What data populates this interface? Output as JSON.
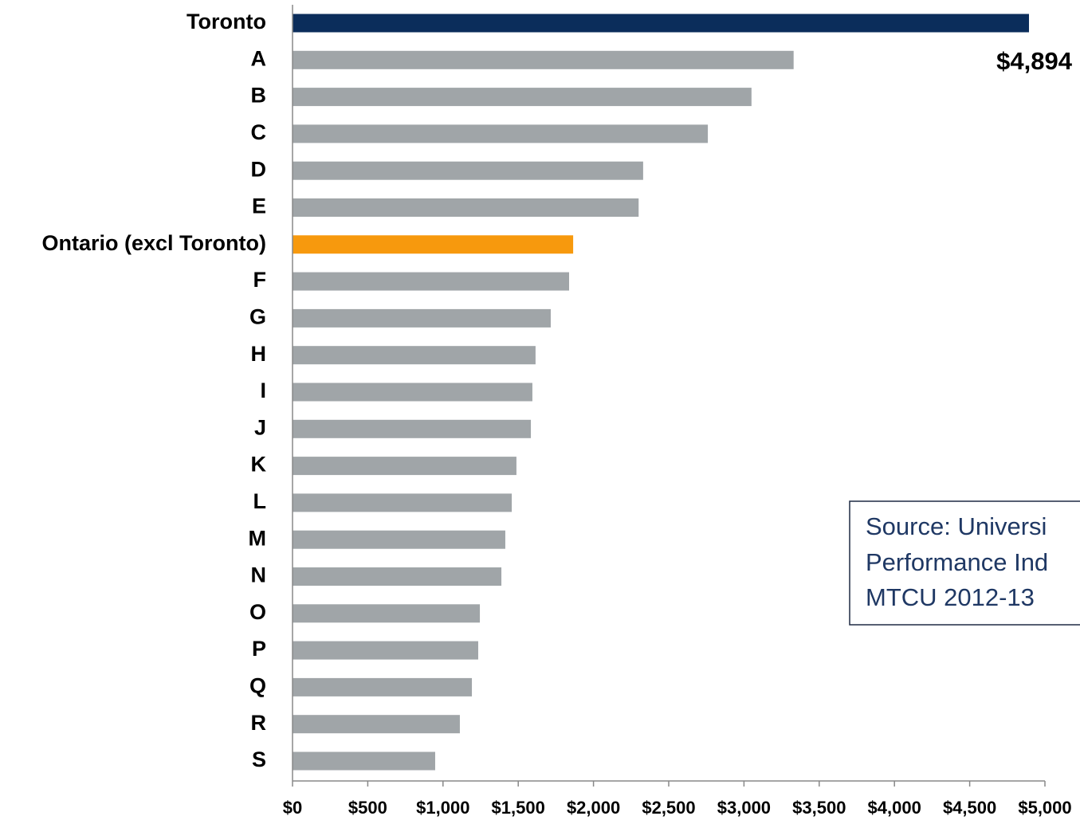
{
  "chart_data": {
    "type": "barh",
    "categories": [
      "Toronto",
      "A",
      "B",
      "C",
      "D",
      "E",
      "Ontario (excl Toronto)",
      "F",
      "G",
      "H",
      "I",
      "J",
      "K",
      "L",
      "M",
      "N",
      "O",
      "P",
      "Q",
      "R",
      "S"
    ],
    "values": [
      4894,
      3330,
      3050,
      2760,
      2330,
      2300,
      1865,
      1838,
      1716,
      1615,
      1594,
      1584,
      1488,
      1457,
      1414,
      1388,
      1245,
      1234,
      1192,
      1112,
      948
    ],
    "value_labels": [
      "$4,894",
      null,
      null,
      null,
      null,
      null,
      null,
      null,
      null,
      null,
      null,
      null,
      null,
      null,
      null,
      null,
      null,
      null,
      null,
      null,
      null
    ],
    "colors": [
      "#0b2d5b",
      "#a0a5a8",
      "#a0a5a8",
      "#a0a5a8",
      "#a0a5a8",
      "#a0a5a8",
      "#f7990d",
      "#a0a5a8",
      "#a0a5a8",
      "#a0a5a8",
      "#a0a5a8",
      "#a0a5a8",
      "#a0a5a8",
      "#a0a5a8",
      "#a0a5a8",
      "#a0a5a8",
      "#a0a5a8",
      "#a0a5a8",
      "#a0a5a8",
      "#a0a5a8",
      "#a0a5a8"
    ],
    "xlim": [
      0,
      5000
    ],
    "xticks": [
      {
        "value": 0,
        "label": "$0"
      },
      {
        "value": 500,
        "label": "$500"
      },
      {
        "value": 1000,
        "label": "$1,000"
      },
      {
        "value": 1500,
        "label": "$1,500"
      },
      {
        "value": 2000,
        "label": "$2,000"
      },
      {
        "value": 2500,
        "label": "$2,500"
      },
      {
        "value": 3000,
        "label": "$3,000"
      },
      {
        "value": 3500,
        "label": "$3,500"
      },
      {
        "value": 4000,
        "label": "$4,000"
      },
      {
        "value": 4500,
        "label": "$4,500"
      },
      {
        "value": 5000,
        "label": "$5,000"
      }
    ],
    "annotation": [
      "Source: Universi",
      "Performance Ind",
      "MTCU 2012-13"
    ],
    "grid": false
  }
}
